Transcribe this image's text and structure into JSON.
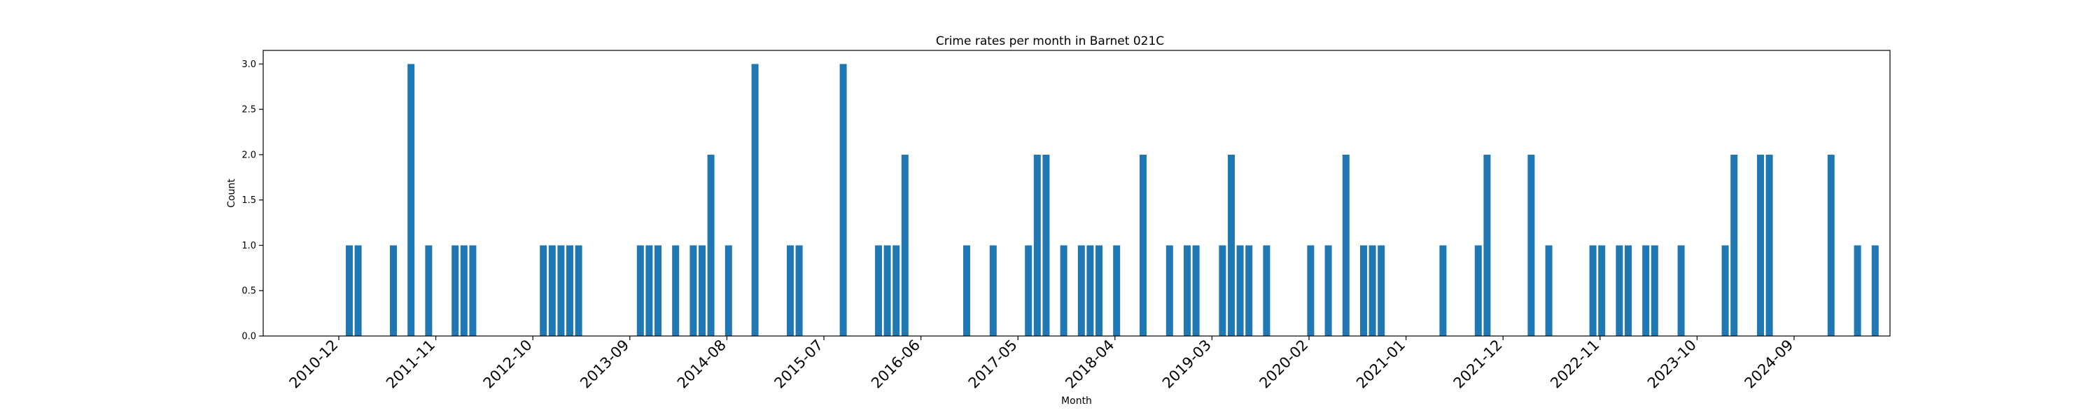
{
  "chart_data": {
    "type": "bar",
    "title": "Crime rates per month in Barnet 021C",
    "xlabel": "Month",
    "ylabel": "Count",
    "bar_color": "#1f77b4",
    "ylim": [
      0,
      3.15
    ],
    "y_ticks": [
      "0.0",
      "0.5",
      "1.0",
      "1.5",
      "2.0",
      "2.5",
      "3.0"
    ],
    "x_tick_labels": [
      "2010-12",
      "2011-11",
      "2012-10",
      "2013-09",
      "2014-08",
      "2015-07",
      "2016-06",
      "2017-05",
      "2018-04",
      "2019-03",
      "2020-02",
      "2021-01",
      "2021-12",
      "2022-11",
      "2023-10",
      "2024-09"
    ],
    "categories": [
      "2010-12",
      "2011-01",
      "2011-05",
      "2011-07",
      "2011-09",
      "2011-12",
      "2012-01",
      "2012-02",
      "2012-10",
      "2012-11",
      "2012-12",
      "2013-01",
      "2013-02",
      "2013-09",
      "2013-10",
      "2013-11",
      "2014-01",
      "2014-03",
      "2014-04",
      "2014-05",
      "2014-07",
      "2014-10",
      "2015-02",
      "2015-03",
      "2015-08",
      "2015-12",
      "2016-01",
      "2016-02",
      "2016-03",
      "2016-10",
      "2017-01",
      "2017-05",
      "2017-06",
      "2017-07",
      "2017-09",
      "2017-11",
      "2017-12",
      "2018-01",
      "2018-03",
      "2018-06",
      "2018-09",
      "2018-11",
      "2018-12",
      "2019-03",
      "2019-04",
      "2019-05",
      "2019-06",
      "2019-08",
      "2020-01",
      "2020-03",
      "2020-05",
      "2020-07",
      "2020-08",
      "2020-09",
      "2021-04",
      "2021-08",
      "2021-09",
      "2022-02",
      "2022-04",
      "2022-09",
      "2022-10",
      "2022-12",
      "2023-01",
      "2023-03",
      "2023-04",
      "2023-07",
      "2023-12",
      "2024-01",
      "2024-04",
      "2024-05",
      "2024-12",
      "2025-03",
      "2025-05"
    ],
    "values": [
      1,
      1,
      1,
      3,
      1,
      1,
      1,
      1,
      1,
      1,
      1,
      1,
      1,
      1,
      1,
      1,
      1,
      1,
      1,
      2,
      1,
      3,
      1,
      1,
      3,
      1,
      1,
      1,
      2,
      1,
      1,
      1,
      2,
      2,
      1,
      1,
      1,
      1,
      1,
      2,
      1,
      1,
      1,
      1,
      2,
      1,
      1,
      1,
      1,
      1,
      2,
      1,
      1,
      1,
      1,
      1,
      2,
      2,
      1,
      1,
      1,
      1,
      1,
      1,
      1,
      1,
      1,
      2,
      2,
      2,
      2,
      1,
      1
    ]
  }
}
